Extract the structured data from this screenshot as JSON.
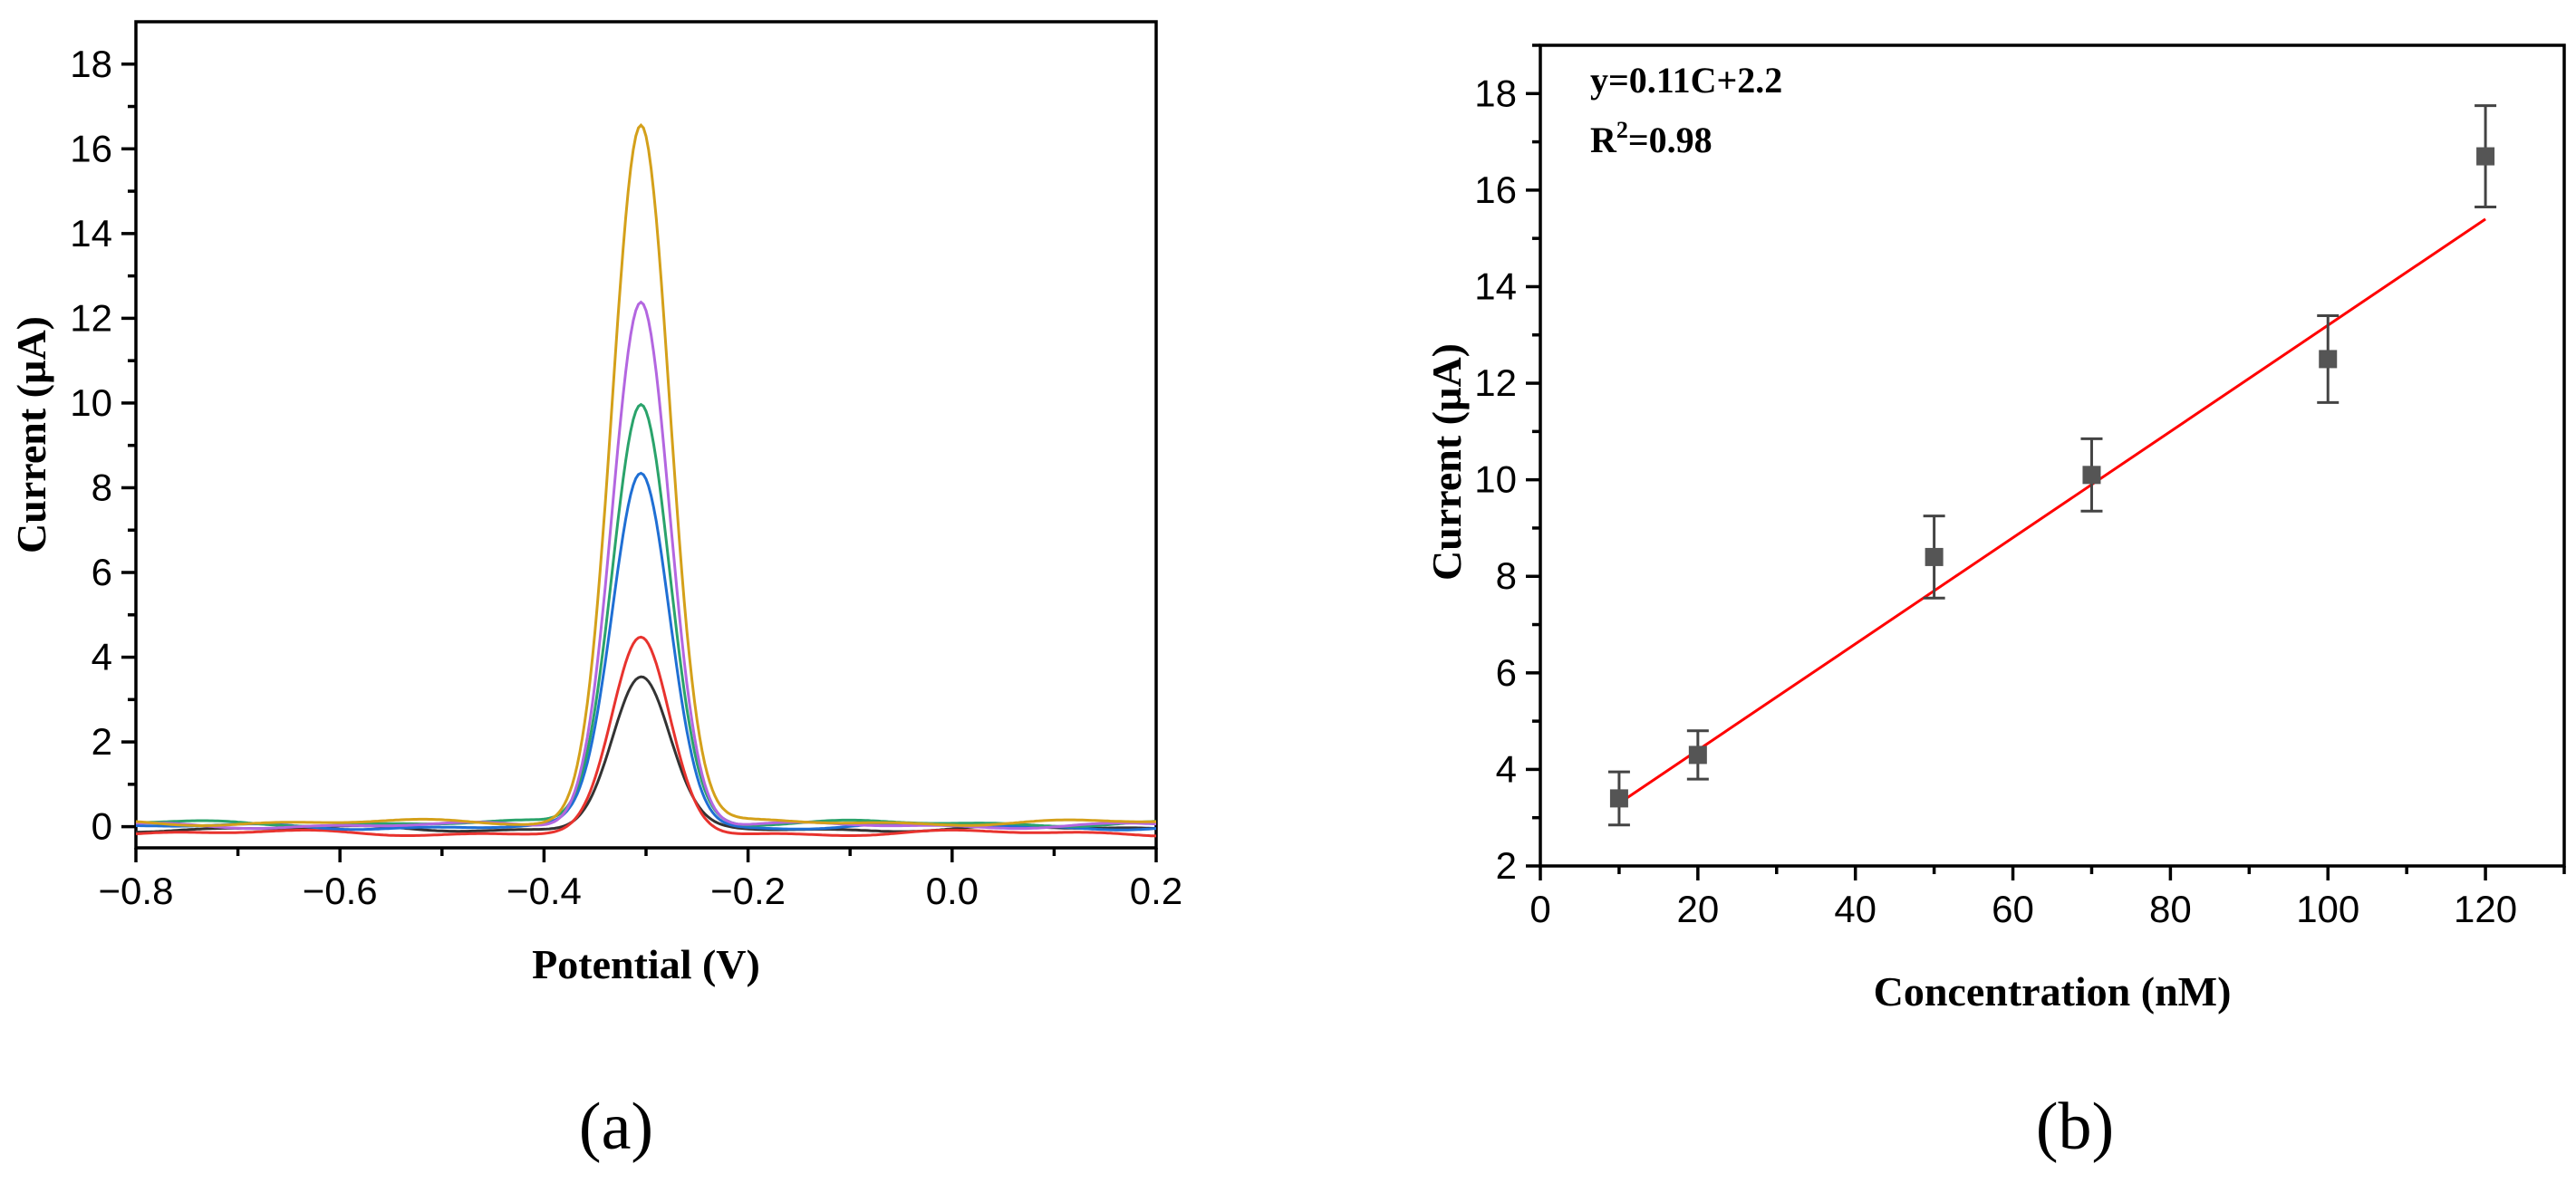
{
  "chart_data": [
    {
      "panel_label": "(a)",
      "type": "line",
      "xlabel": "Potential (V)",
      "ylabel": "Current (µA)",
      "xlim": [
        -0.8,
        0.2
      ],
      "ylim": [
        -0.5,
        19
      ],
      "xticks": [
        "−0.8",
        "−0.6",
        "−0.4",
        "−0.2",
        "0.0",
        "0.2"
      ],
      "yticks": [
        "0",
        "2",
        "4",
        "6",
        "8",
        "10",
        "12",
        "14",
        "16",
        "18"
      ],
      "peak_potential": -0.305,
      "series": [
        {
          "color": "#333333",
          "baseline": -0.05,
          "peak": 3.5
        },
        {
          "color": "#e8332e",
          "baseline": -0.15,
          "peak": 4.4
        },
        {
          "color": "#1f6fd4",
          "baseline": 0.0,
          "peak": 8.35
        },
        {
          "color": "#2aa36b",
          "baseline": 0.08,
          "peak": 10.0
        },
        {
          "color": "#b366e0",
          "baseline": 0.03,
          "peak": 12.4
        },
        {
          "color": "#d4a01a",
          "baseline": 0.1,
          "peak": 16.6
        }
      ]
    },
    {
      "panel_label": "(b)",
      "type": "scatter",
      "xlabel": "Concentration (nM)",
      "ylabel": "Current (µA)",
      "xlim": [
        0,
        130
      ],
      "ylim": [
        2,
        19
      ],
      "xticks": [
        "0",
        "20",
        "40",
        "60",
        "80",
        "100",
        "120"
      ],
      "yticks": [
        "2",
        "4",
        "6",
        "8",
        "10",
        "12",
        "14",
        "16",
        "18"
      ],
      "equation": "y=0.11C+2.2",
      "r2_prefix": "R",
      "r2_sup": "2",
      "r2_value": "=0.98",
      "fit": {
        "slope": 0.11,
        "intercept": 2.2,
        "x_range": [
          10,
          120
        ],
        "color": "#ff0000"
      },
      "points": [
        {
          "x": 10,
          "y": 3.4,
          "err": 0.55
        },
        {
          "x": 20,
          "y": 4.3,
          "err": 0.5
        },
        {
          "x": 50,
          "y": 8.4,
          "err": 0.85
        },
        {
          "x": 70,
          "y": 10.1,
          "err": 0.75
        },
        {
          "x": 100,
          "y": 12.5,
          "err": 0.9
        },
        {
          "x": 120,
          "y": 16.7,
          "err": 1.05
        }
      ],
      "marker_color": "#555555"
    }
  ]
}
